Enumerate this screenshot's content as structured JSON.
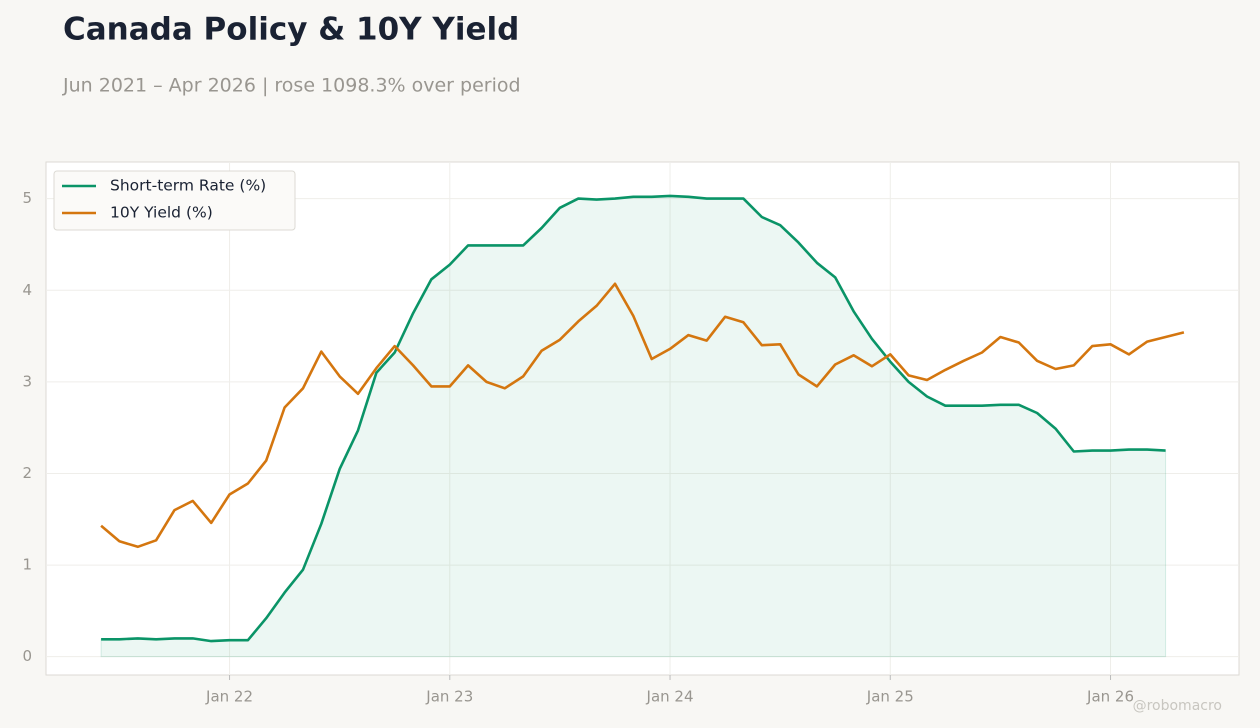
{
  "chart_data": {
    "type": "line",
    "title": "Canada Policy & 10Y Yield",
    "subtitle": "Jun 2021 – Apr 2026 | rose 1098.3% over period",
    "watermark": "@robomacro",
    "x": [
      "2021-06",
      "2021-07",
      "2021-08",
      "2021-09",
      "2021-10",
      "2021-11",
      "2021-12",
      "2022-01",
      "2022-02",
      "2022-03",
      "2022-04",
      "2022-05",
      "2022-06",
      "2022-07",
      "2022-08",
      "2022-09",
      "2022-10",
      "2022-11",
      "2022-12",
      "2023-01",
      "2023-02",
      "2023-03",
      "2023-04",
      "2023-05",
      "2023-06",
      "2023-07",
      "2023-08",
      "2023-09",
      "2023-10",
      "2023-11",
      "2023-12",
      "2024-01",
      "2024-02",
      "2024-03",
      "2024-04",
      "2024-05",
      "2024-06",
      "2024-07",
      "2024-08",
      "2024-09",
      "2024-10",
      "2024-11",
      "2024-12",
      "2025-01",
      "2025-02",
      "2025-03",
      "2025-04",
      "2025-05",
      "2025-06",
      "2025-07",
      "2025-08",
      "2025-09",
      "2025-10",
      "2025-11",
      "2025-12",
      "2026-01",
      "2026-02",
      "2026-03",
      "2026-04",
      "2026-05"
    ],
    "series": [
      {
        "name": "Short-term Rate (%)",
        "color": "#0a9467",
        "fill": true,
        "values": [
          0.19,
          0.19,
          0.2,
          0.19,
          0.2,
          0.2,
          0.17,
          0.18,
          0.18,
          0.42,
          0.7,
          0.95,
          1.45,
          2.05,
          2.47,
          3.1,
          3.32,
          3.75,
          4.12,
          4.28,
          4.49,
          4.49,
          4.49,
          4.49,
          4.68,
          4.9,
          5.0,
          4.99,
          5.0,
          5.02,
          5.02,
          5.03,
          5.02,
          5.0,
          5.0,
          5.0,
          4.8,
          4.71,
          4.52,
          4.3,
          4.14,
          3.77,
          3.47,
          3.22,
          3.0,
          2.84,
          2.74,
          2.74,
          2.74,
          2.75,
          2.75,
          2.66,
          2.49,
          2.24,
          2.25,
          2.25,
          2.26,
          2.26,
          2.25,
          null
        ]
      },
      {
        "name": "10Y Yield (%)",
        "color": "#d4760f",
        "fill": false,
        "values": [
          1.43,
          1.26,
          1.2,
          1.27,
          1.6,
          1.7,
          1.46,
          1.77,
          1.89,
          2.14,
          2.72,
          2.93,
          3.33,
          3.06,
          2.87,
          3.15,
          3.39,
          3.18,
          2.95,
          2.95,
          3.18,
          3.0,
          2.93,
          3.06,
          3.34,
          3.46,
          3.66,
          3.83,
          4.07,
          3.72,
          3.25,
          3.36,
          3.51,
          3.45,
          3.71,
          3.65,
          3.4,
          3.41,
          3.08,
          2.95,
          3.19,
          3.29,
          3.17,
          3.3,
          3.07,
          3.02,
          3.13,
          3.23,
          3.32,
          3.49,
          3.43,
          3.23,
          3.14,
          3.18,
          3.39,
          3.41,
          3.3,
          3.44,
          3.49,
          3.54
        ]
      }
    ],
    "xlim": [
      "2021-03",
      "2026-08"
    ],
    "xticks": [
      {
        "value": "2022-01",
        "label": "Jan 22"
      },
      {
        "value": "2023-01",
        "label": "Jan 23"
      },
      {
        "value": "2024-01",
        "label": "Jan 24"
      },
      {
        "value": "2025-01",
        "label": "Jan 25"
      },
      {
        "value": "2026-01",
        "label": "Jan 26"
      }
    ],
    "ylim": [
      -0.2,
      5.4
    ],
    "yticks": [
      0,
      1,
      2,
      3,
      4,
      5
    ],
    "grid": true,
    "legend": "upper-left"
  }
}
